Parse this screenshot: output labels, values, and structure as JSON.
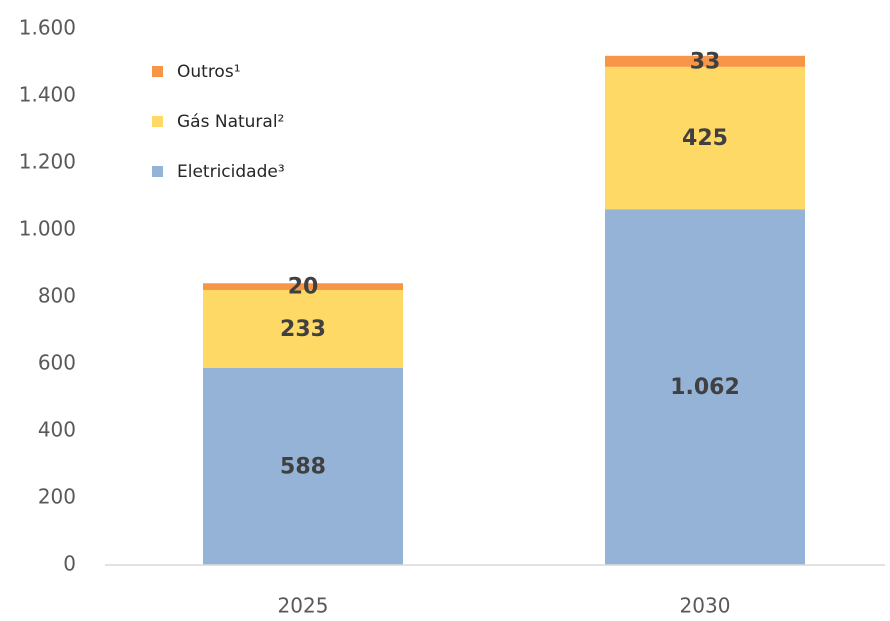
{
  "chart_data": {
    "type": "stacked_bar",
    "categories": [
      "2025",
      "2030"
    ],
    "series": [
      {
        "name": "Eletricidade³",
        "color": "#95b3d7",
        "values": [
          588,
          1062
        ],
        "value_labels": [
          "588",
          "1.062"
        ]
      },
      {
        "name": "Gás Natural²",
        "color": "#ffd966",
        "values": [
          233,
          425
        ]
      },
      {
        "name": "Outros¹",
        "color": "#f79646",
        "values": [
          20,
          33
        ]
      }
    ],
    "ylim": [
      0,
      1600
    ],
    "yticks": [
      0,
      200,
      400,
      600,
      800,
      {
        "value": 1000,
        "label": "1.000"
      },
      {
        "value": 1200,
        "label": "1.200"
      },
      {
        "value": 1400,
        "label": "1.400"
      },
      {
        "value": 1600,
        "label": "1.600"
      }
    ],
    "grid": false,
    "legend": "upper left"
  }
}
